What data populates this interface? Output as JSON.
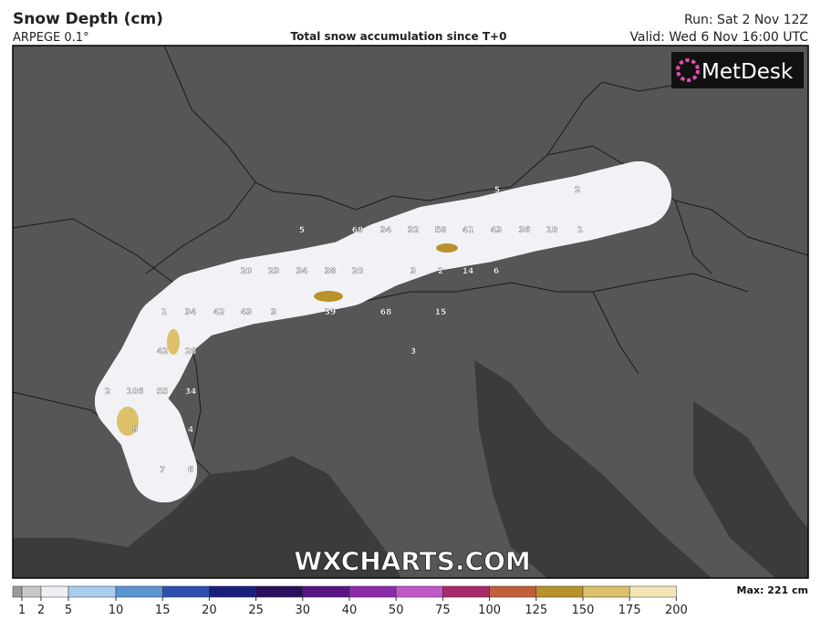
{
  "header": {
    "title": "Snow Depth (cm)",
    "model": "ARPEGE 0.1°",
    "subtitle": "Total snow accumulation since T+0",
    "run": "Run: Sat 2 Nov 12Z",
    "valid": "Valid: Wed 6 Nov 16:00 UTC"
  },
  "logo": "MetDesk",
  "watermark": "WXCHARTS.COM",
  "map_labels": [
    5,
    2,
    5,
    69,
    34,
    32,
    58,
    41,
    43,
    36,
    10,
    1,
    20,
    23,
    34,
    38,
    20,
    3,
    2,
    14,
    6,
    1,
    34,
    42,
    43,
    3,
    39,
    68,
    15,
    42,
    28,
    3,
    2,
    106,
    55,
    34,
    8,
    4,
    7,
    6
  ],
  "colorbar": {
    "ticks": [
      1,
      2,
      5,
      10,
      15,
      20,
      25,
      30,
      40,
      50,
      75,
      100,
      125,
      150,
      175,
      200
    ],
    "colors": [
      "#9a9a9a",
      "#c8c8c8",
      "#eeeef4",
      "#a9cdee",
      "#5d95d2",
      "#2f4fae",
      "#1a1f7a",
      "#2a0f5c",
      "#5a1585",
      "#8c2aa8",
      "#c058c8",
      "#a82a6a",
      "#c0603a",
      "#b8922a",
      "#dcc06a",
      "#f4e6b4"
    ],
    "max": "Max: 221 cm"
  }
}
